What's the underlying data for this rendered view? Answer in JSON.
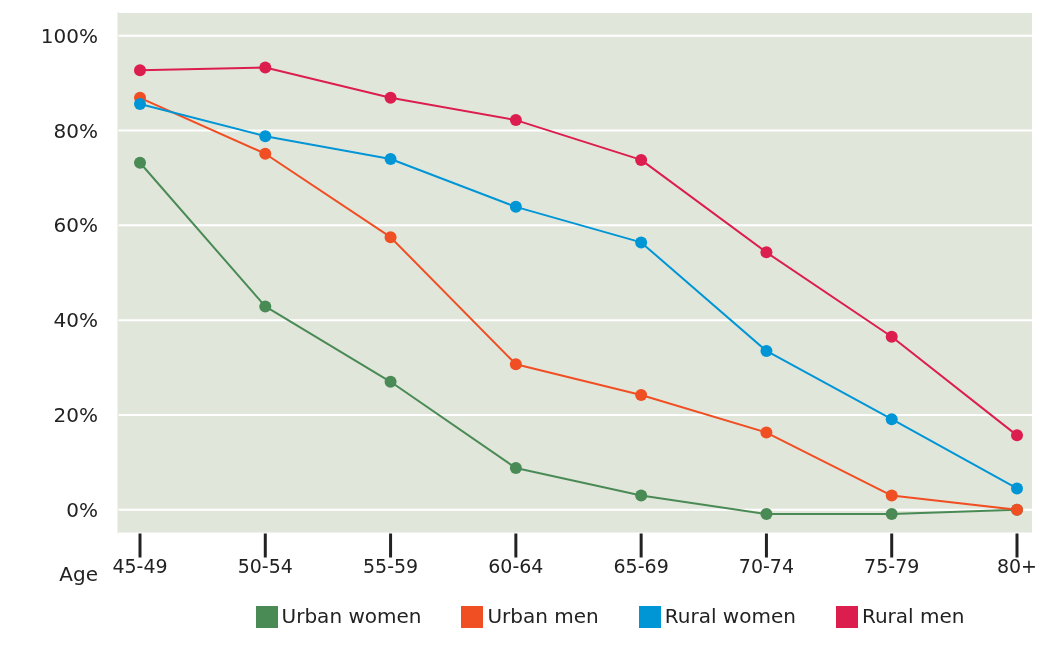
{
  "chart_data": {
    "type": "line",
    "xlabel": "Age",
    "categories": [
      "45-49",
      "50-54",
      "55-59",
      "60-64",
      "65-69",
      "70-74",
      "75-79",
      "80+"
    ],
    "series": [
      {
        "name": "Urban women",
        "color": "#4a8a55",
        "values": [
          73.2,
          42.9,
          27.0,
          8.8,
          3.0,
          -0.9,
          -0.9,
          0
        ]
      },
      {
        "name": "Urban men",
        "color": "#f04e23",
        "values": [
          86.9,
          75.1,
          57.5,
          30.7,
          24.2,
          16.3,
          3.0,
          0
        ]
      },
      {
        "name": "Rural women",
        "color": "#0096d6",
        "values": [
          85.6,
          78.8,
          74.0,
          63.9,
          56.4,
          33.5,
          19.1,
          4.5
        ]
      },
      {
        "name": "Rural men",
        "color": "#dc1e4e",
        "values": [
          92.7,
          93.3,
          86.9,
          82.2,
          73.8,
          54.3,
          36.5,
          15.7
        ]
      }
    ],
    "ylim": [
      -5,
      105
    ],
    "yticks": [
      {
        "value": 0,
        "label": "0%"
      },
      {
        "value": 20,
        "label": "20%"
      },
      {
        "value": 40,
        "label": "40%"
      },
      {
        "value": 60,
        "label": "60%"
      },
      {
        "value": 80,
        "label": "80%"
      },
      {
        "value": 100,
        "label": "100%"
      }
    ],
    "grid": "y",
    "legend": "bottom",
    "marker": "circle",
    "line_style": "solid"
  }
}
